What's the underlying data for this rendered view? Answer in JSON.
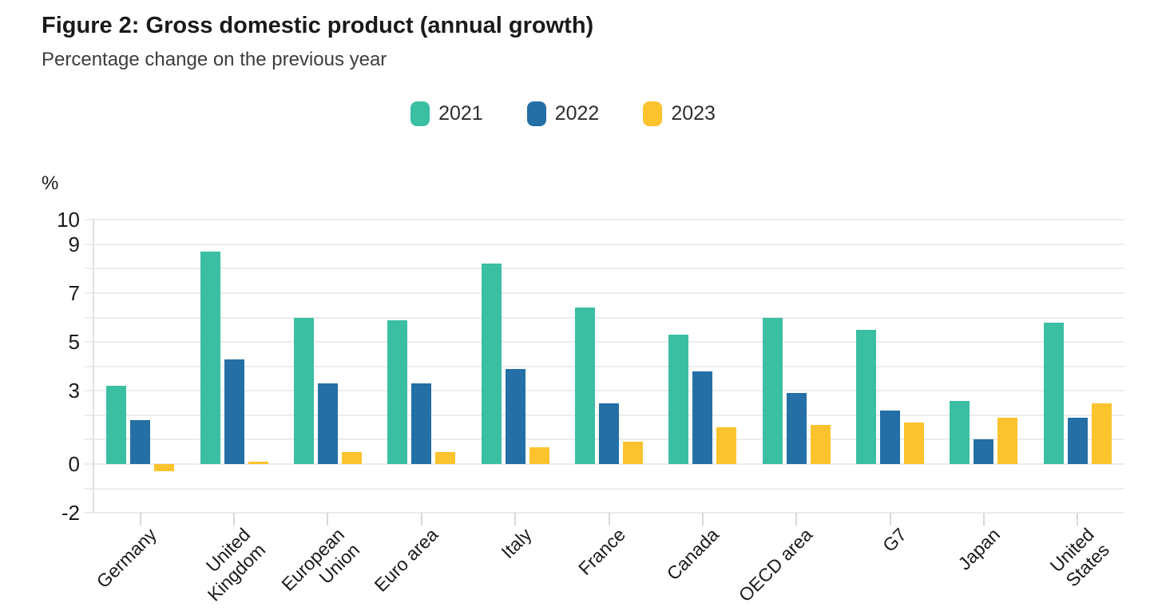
{
  "figure": {
    "title": "Figure 2: Gross domestic product (annual growth)",
    "subtitle": "Percentage change on the previous year"
  },
  "colors": {
    "series_2021": "#3BBFA3",
    "series_2022": "#246FA5",
    "series_2023": "#FBC32E",
    "gridline": "#ECECEC",
    "axis_line": "#E0E0E0",
    "tick": "#D8D8D8",
    "title_text": "#1A1A1A",
    "subtitle_text": "#3D3D3D",
    "label_text": "#1A1A1A"
  },
  "chart_data": {
    "type": "bar",
    "title": "Figure 2: Gross domestic product (annual growth)",
    "subtitle": "Percentage change on the previous year",
    "unit_label": "%",
    "categories": [
      "Germany",
      "United Kingdom",
      "European Union",
      "Euro area",
      "Italy",
      "France",
      "Canada",
      "OECD area",
      "G7",
      "Japan",
      "United States"
    ],
    "category_label_lines": [
      [
        "Germany"
      ],
      [
        "United",
        "Kingdom"
      ],
      [
        "European",
        "Union"
      ],
      [
        "Euro area"
      ],
      [
        "Italy"
      ],
      [
        "France"
      ],
      [
        "Canada"
      ],
      [
        "OECD area"
      ],
      [
        "G7"
      ],
      [
        "Japan"
      ],
      [
        "United",
        "States"
      ]
    ],
    "series": [
      {
        "name": "2021",
        "color": "#3BBFA3",
        "values": [
          3.2,
          8.7,
          6.0,
          5.9,
          8.2,
          6.4,
          5.3,
          6.0,
          5.5,
          2.6,
          5.8
        ]
      },
      {
        "name": "2022",
        "color": "#246FA5",
        "values": [
          1.8,
          4.3,
          3.3,
          3.3,
          3.9,
          2.5,
          3.8,
          2.9,
          2.2,
          1.0,
          1.9
        ]
      },
      {
        "name": "2023",
        "color": "#FBC32E",
        "values": [
          -0.3,
          0.1,
          0.5,
          0.5,
          0.7,
          0.9,
          1.5,
          1.6,
          1.7,
          1.9,
          2.5
        ]
      }
    ],
    "y_axis": {
      "min": -2,
      "max": 10,
      "labeled_ticks": [
        10,
        9,
        7,
        5,
        3,
        0,
        -2
      ],
      "gridline_step": 1
    },
    "x_axis": {
      "tick_rotation_deg": -45
    },
    "legend_position": "top-center",
    "grid": true
  }
}
